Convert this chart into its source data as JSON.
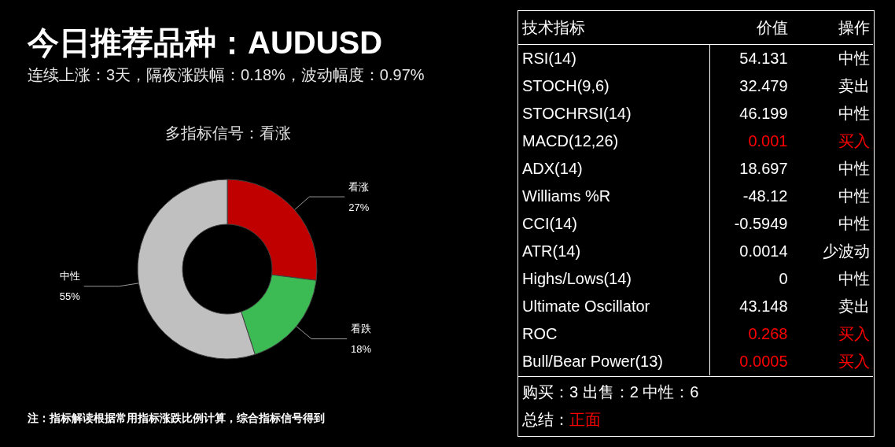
{
  "chart_data": [
    {
      "type": "other",
      "title": "今日推荐品种：AUDUSD",
      "subtitle": "连续上涨：3天，隔夜涨跌幅：0.18%，波动幅度：0.97%"
    },
    {
      "type": "donut",
      "title": "多指标信号：看涨",
      "categories": [
        "看涨",
        "看跌",
        "中性"
      ],
      "values": [
        27,
        18,
        55
      ],
      "value_labels": [
        "27%",
        "18%",
        "55%"
      ],
      "colors": [
        "#c00000",
        "#3cba54",
        "#c0c0c0"
      ],
      "annotations": [
        "注：指标解读根据常用指标涨跌比例计算，综合指标信号得到"
      ]
    },
    {
      "type": "other",
      "ylabel": "技术指标",
      "y2label": "操作",
      "categories": [
        "RSI(14)",
        "STOCH(9,6)",
        "STOCHRSI(14)",
        "MACD(12,26)",
        "ADX(14)",
        "Williams %R",
        "CCI(14)",
        "ATR(14)",
        "Highs/Lows(14)",
        "Ultimate Oscillator",
        "ROC",
        "Bull/Bear Power(13)"
      ],
      "y2_categories": [
        "中性",
        "卖出",
        "中性",
        "买入",
        "中性",
        "中性",
        "中性",
        "少波动",
        "中性",
        "卖出",
        "买入",
        "买入"
      ],
      "series": [
        {
          "name": "价值",
          "values": [
            54.131,
            32.479,
            46.199,
            0.001,
            18.697,
            -48.12,
            -0.5949,
            0.0014,
            0,
            43.148,
            0.268,
            0.0005
          ],
          "colors": [
            "#ffffff",
            "#ffffff",
            "#ffffff",
            "#ff0000",
            "#ffffff",
            "#ffffff",
            "#ffffff",
            "#ffffff",
            "#ffffff",
            "#ffffff",
            "#ff0000",
            "#ff0000"
          ]
        }
      ],
      "data_labels": true,
      "annotations": [
        "购买：3 出售：2 中性：6",
        "总结：",
        "正面"
      ]
    }
  ]
}
